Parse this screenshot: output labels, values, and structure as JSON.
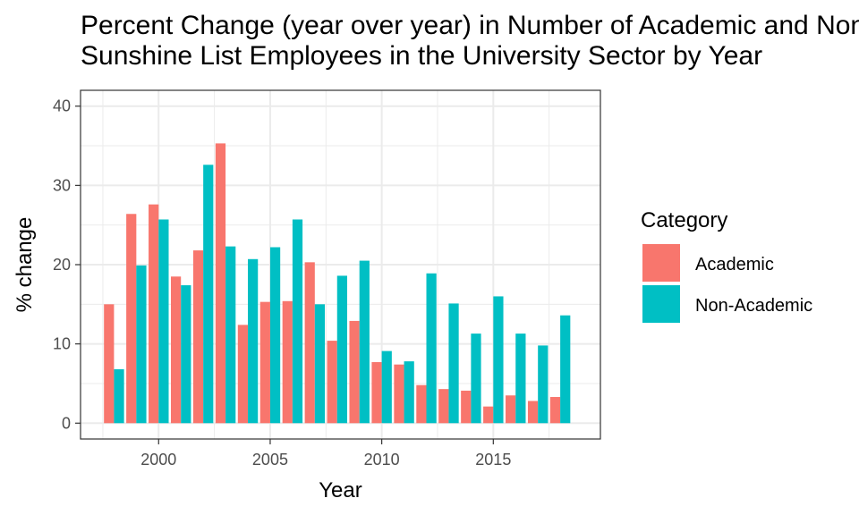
{
  "chart_data": {
    "type": "bar",
    "title_lines": [
      "Percent Change (year over year) in Number of Academic and Non-Academic",
      "Sunshine List Employees in the University Sector by Year"
    ],
    "xlabel": "Year",
    "ylabel": "% change",
    "xlim": [
      1996.5,
      2019.8
    ],
    "ylim": [
      -2,
      42
    ],
    "x_ticks": [
      2000,
      2005,
      2010,
      2015
    ],
    "y_ticks": [
      0,
      10,
      20,
      30,
      40
    ],
    "grid": true,
    "legend": {
      "title": "Category",
      "position": "right"
    },
    "x": [
      1998,
      1999,
      2000,
      2001,
      2002,
      2003,
      2004,
      2005,
      2006,
      2007,
      2008,
      2009,
      2010,
      2011,
      2012,
      2013,
      2014,
      2015,
      2016,
      2017,
      2018
    ],
    "series": [
      {
        "name": "Academic",
        "color": "#F8766D",
        "values": [
          15.0,
          26.4,
          27.6,
          18.5,
          21.8,
          35.3,
          12.4,
          15.3,
          15.4,
          20.3,
          10.4,
          12.9,
          7.7,
          7.4,
          4.8,
          4.3,
          4.1,
          2.1,
          3.5,
          2.8,
          3.3
        ]
      },
      {
        "name": "Non-Academic",
        "color": "#00BFC4",
        "values": [
          6.8,
          19.9,
          25.7,
          17.4,
          32.6,
          22.3,
          20.7,
          22.2,
          25.7,
          15.0,
          18.6,
          20.5,
          9.1,
          7.8,
          18.9,
          15.1,
          11.3,
          16.0,
          11.3,
          9.8,
          13.6
        ]
      }
    ]
  }
}
